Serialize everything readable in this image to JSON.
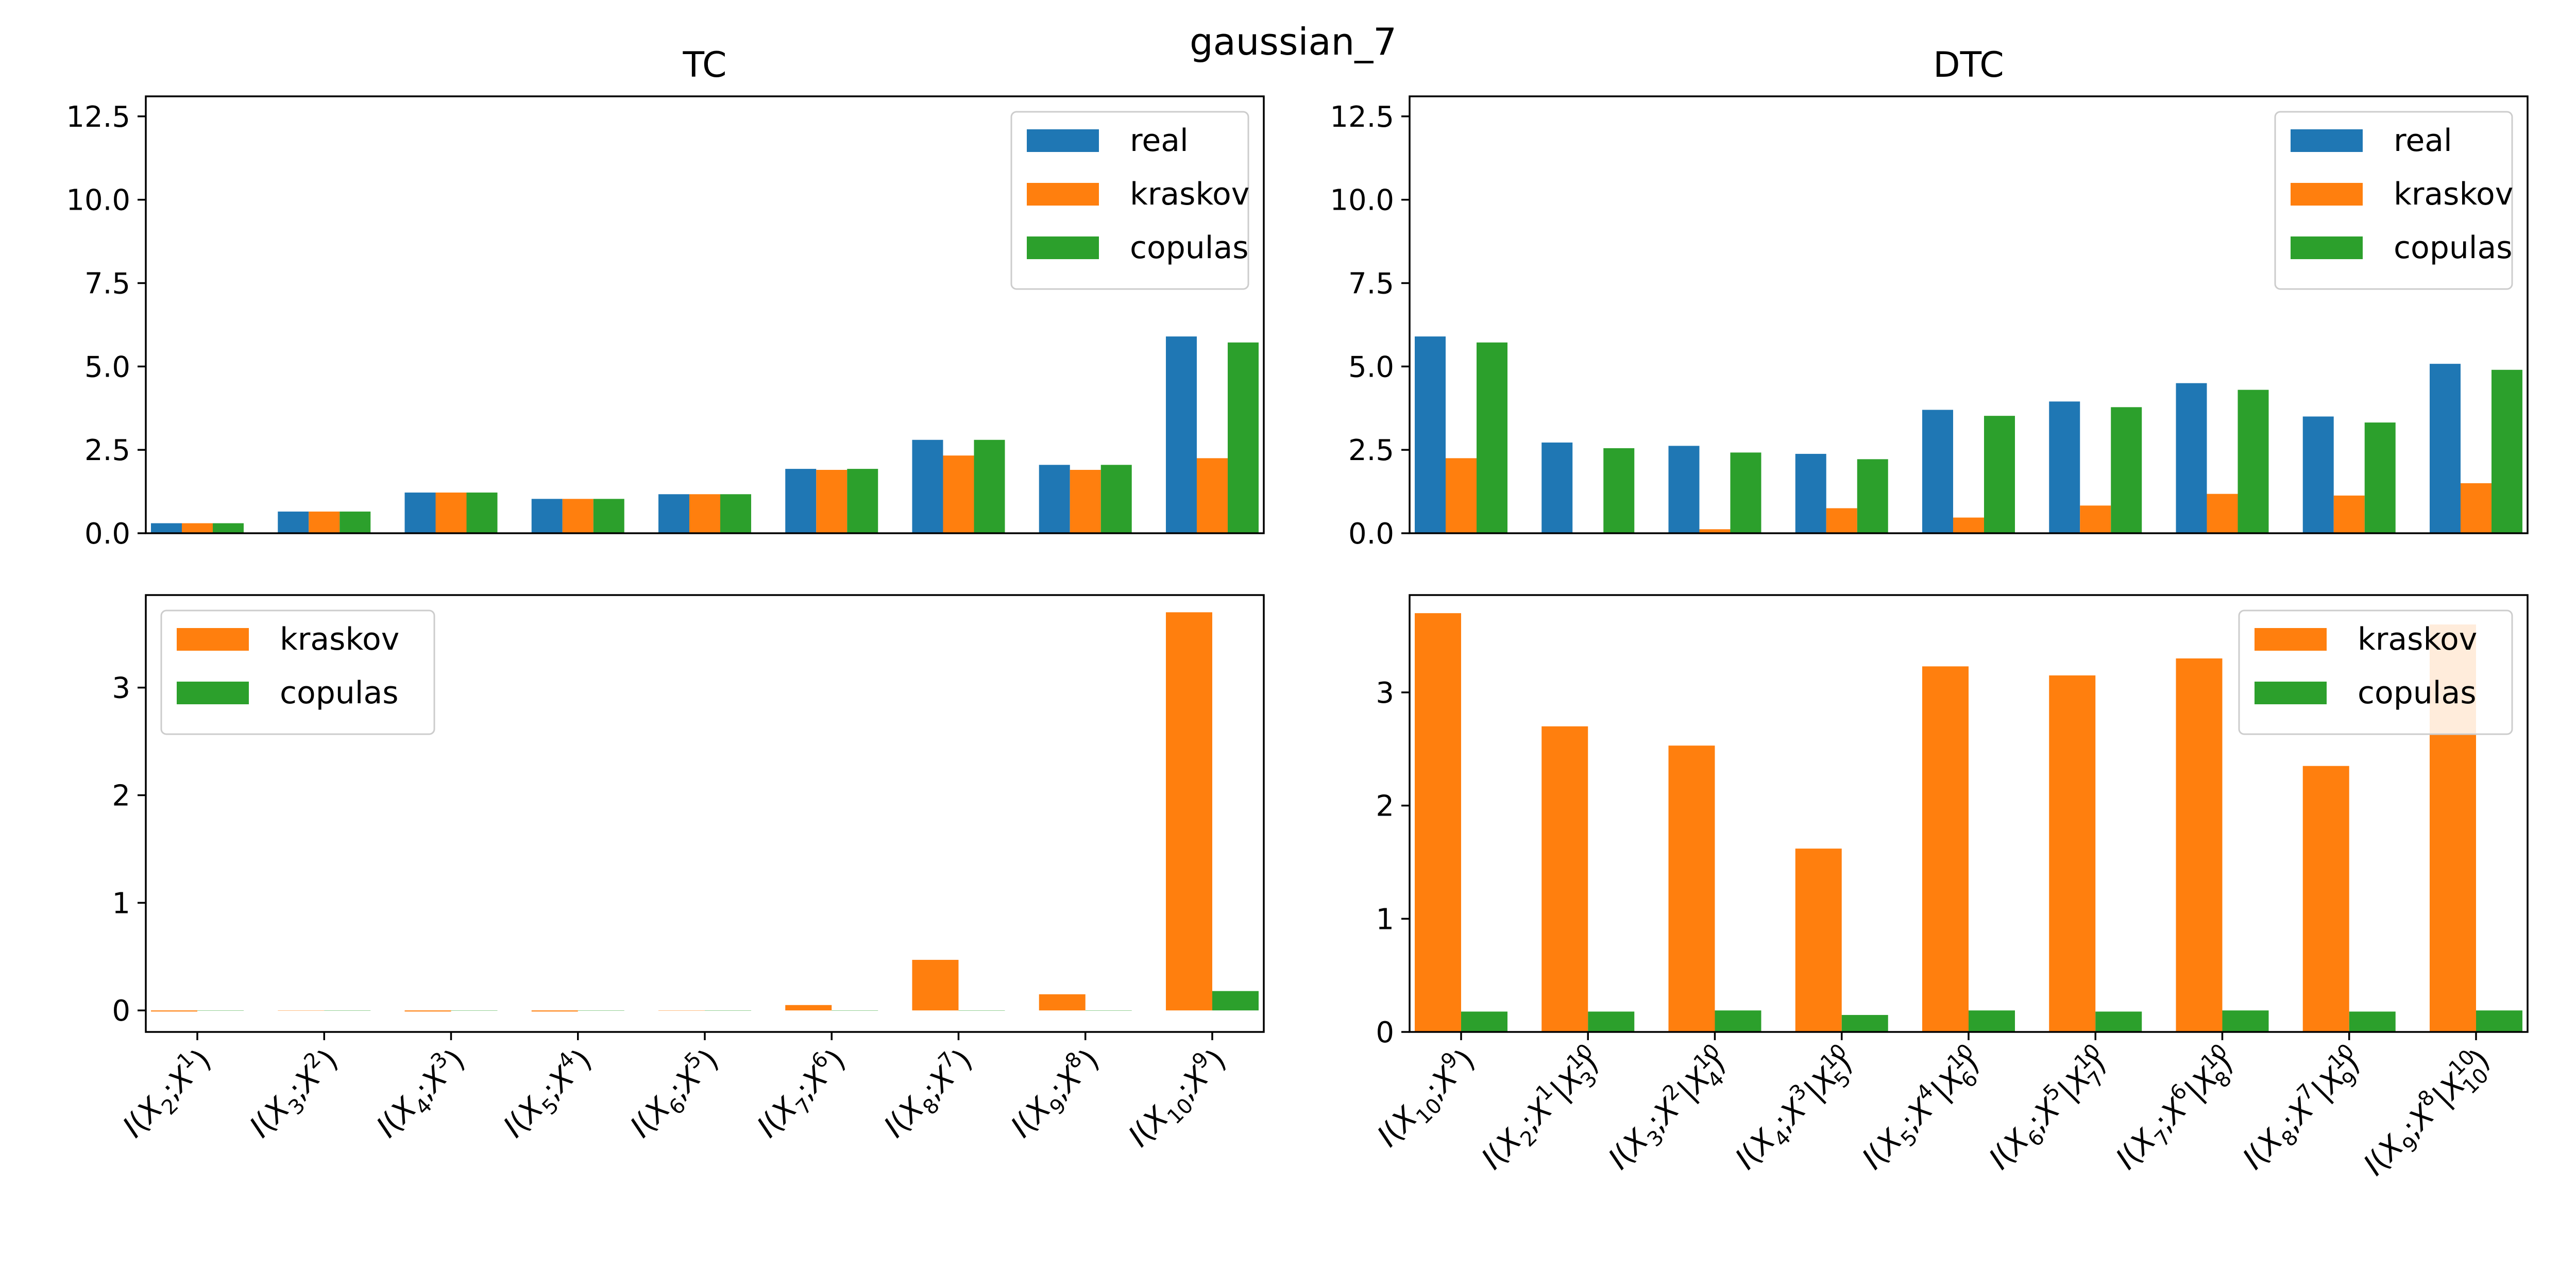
{
  "figure": {
    "suptitle": "gaussian_7"
  },
  "colors": {
    "real": "#1f77b4",
    "kraskov": "#ff7f0e",
    "copulas": "#2ca02c"
  },
  "chart_data": [
    {
      "id": "tc-top",
      "type": "bar",
      "title": "TC",
      "xlabel": "",
      "ylabel": "",
      "ylim": [
        0,
        13.1
      ],
      "yticks": [
        "0.0",
        "2.5",
        "5.0",
        "7.5",
        "10.0",
        "12.5"
      ],
      "legend": "top-right",
      "categories": [
        "I(X2;X1)",
        "I(X3;X2)",
        "I(X4;X3)",
        "I(X5;X4)",
        "I(X6;X5)",
        "I(X7;X6)",
        "I(X8;X7)",
        "I(X9;X8)",
        "I(X10;X9)"
      ],
      "series": [
        {
          "name": "real",
          "color": "#1f77b4",
          "values": [
            0.3,
            0.65,
            1.22,
            1.03,
            1.17,
            1.93,
            2.8,
            2.05,
            5.9
          ]
        },
        {
          "name": "kraskov",
          "color": "#ff7f0e",
          "values": [
            0.3,
            0.65,
            1.22,
            1.03,
            1.17,
            1.9,
            2.33,
            1.9,
            2.25
          ]
        },
        {
          "name": "copulas",
          "color": "#2ca02c",
          "values": [
            0.3,
            0.65,
            1.22,
            1.03,
            1.17,
            1.93,
            2.8,
            2.05,
            5.72
          ]
        }
      ]
    },
    {
      "id": "dtc-top",
      "type": "bar",
      "title": "DTC",
      "xlabel": "",
      "ylabel": "",
      "ylim": [
        0,
        13.1
      ],
      "yticks": [
        "0.0",
        "2.5",
        "5.0",
        "7.5",
        "10.0",
        "12.5"
      ],
      "legend": "top-right",
      "categories": [
        "I(X10;X9)",
        "I(X2;X1|X3^10)",
        "I(X3;X2|X4^10)",
        "I(X4;X3|X5^10)",
        "I(X5;X4|X6^10)",
        "I(X6;X5|X7^10)",
        "I(X7;X6|X8^10)",
        "I(X8;X7|X9^10)",
        "I(X9;X8|X10^10)"
      ],
      "series": [
        {
          "name": "real",
          "color": "#1f77b4",
          "values": [
            5.9,
            2.72,
            2.62,
            2.38,
            3.7,
            3.95,
            4.5,
            3.5,
            5.08
          ]
        },
        {
          "name": "kraskov",
          "color": "#ff7f0e",
          "values": [
            2.25,
            0.0,
            0.12,
            0.75,
            0.47,
            0.83,
            1.18,
            1.13,
            1.5
          ]
        },
        {
          "name": "copulas",
          "color": "#2ca02c",
          "values": [
            5.72,
            2.55,
            2.42,
            2.22,
            3.52,
            3.78,
            4.3,
            3.32,
            4.9
          ]
        }
      ]
    },
    {
      "id": "tc-bottom",
      "type": "bar",
      "title": "",
      "xlabel": "",
      "ylabel": "",
      "ylim": [
        -0.2,
        3.86
      ],
      "yticks": [
        "0",
        "1",
        "2",
        "3"
      ],
      "legend": "top-left",
      "categories": [
        "I(X2;X1)",
        "I(X3;X2)",
        "I(X4;X3)",
        "I(X5;X4)",
        "I(X6;X5)",
        "I(X7;X6)",
        "I(X8;X7)",
        "I(X9;X8)",
        "I(X10;X9)"
      ],
      "series": [
        {
          "name": "kraskov",
          "color": "#ff7f0e",
          "values": [
            -0.01,
            0.0,
            -0.01,
            -0.01,
            0.0,
            0.05,
            0.47,
            0.15,
            3.7
          ]
        },
        {
          "name": "copulas",
          "color": "#2ca02c",
          "values": [
            0.0,
            0.0,
            0.0,
            0.0,
            0.0,
            0.0,
            0.0,
            0.0,
            0.18
          ]
        }
      ]
    },
    {
      "id": "dtc-bottom",
      "type": "bar",
      "title": "",
      "xlabel": "",
      "ylabel": "",
      "ylim": [
        0,
        3.86
      ],
      "yticks": [
        "0",
        "1",
        "2",
        "3"
      ],
      "legend": "top-right",
      "categories": [
        "I(X10;X9)",
        "I(X2;X1|X3^10)",
        "I(X3;X2|X4^10)",
        "I(X4;X3|X5^10)",
        "I(X5;X4|X6^10)",
        "I(X6;X5|X7^10)",
        "I(X7;X6|X8^10)",
        "I(X8;X7|X9^10)",
        "I(X9;X8|X10^10)"
      ],
      "series": [
        {
          "name": "kraskov",
          "color": "#ff7f0e",
          "values": [
            3.7,
            2.7,
            2.53,
            1.62,
            3.23,
            3.15,
            3.3,
            2.35,
            3.6
          ]
        },
        {
          "name": "copulas",
          "color": "#2ca02c",
          "values": [
            0.18,
            0.18,
            0.19,
            0.15,
            0.19,
            0.18,
            0.19,
            0.18,
            0.19
          ]
        }
      ]
    }
  ]
}
